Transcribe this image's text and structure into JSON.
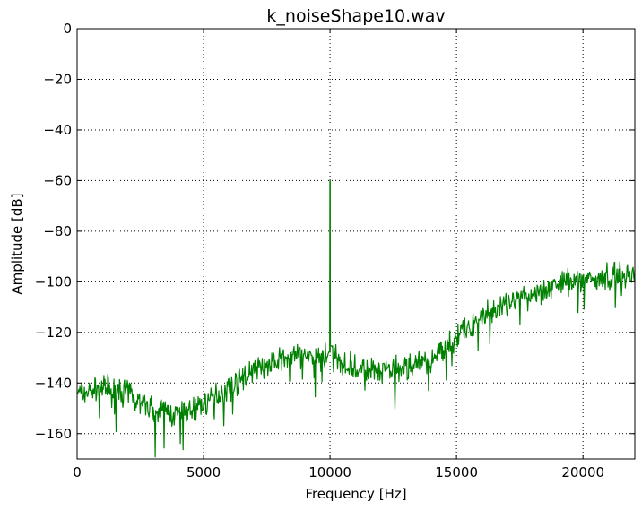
{
  "chart_data": {
    "type": "line",
    "title": "k_noiseShape10.wav",
    "xlabel": "Frequency [Hz]",
    "ylabel": "Amplitude [dB]",
    "xlim": [
      0,
      22050
    ],
    "ylim": [
      -170,
      0
    ],
    "grid": true,
    "x_ticks": [
      0,
      5000,
      10000,
      15000,
      20000
    ],
    "x_tick_labels": [
      "0",
      "5000",
      "10000",
      "15000",
      "20000"
    ],
    "y_ticks": [
      0,
      -20,
      -40,
      -60,
      -80,
      -100,
      -120,
      -140,
      -160
    ],
    "y_tick_labels": [
      "0",
      "−20",
      "−40",
      "−60",
      "−80",
      "−100",
      "−120",
      "−140",
      "−160"
    ],
    "series": [
      {
        "color": "#008000",
        "envelope_x": [
          0,
          1000,
          2000,
          3000,
          4000,
          5000,
          6000,
          7000,
          8000,
          9000,
          9900,
          10100,
          11000,
          12000,
          13000,
          14000,
          15000,
          16000,
          17000,
          18000,
          19000,
          20000,
          21000,
          22050
        ],
        "envelope_y": [
          -144,
          -142,
          -144,
          -150,
          -153,
          -148,
          -142,
          -135,
          -131,
          -129,
          -130,
          -130,
          -134,
          -136,
          -134,
          -131,
          -122,
          -114,
          -109,
          -105,
          -101,
          -99,
          -98,
          -97
        ],
        "noise_amplitude_db": 6,
        "peak": {
          "x": 10000,
          "y": -60
        }
      }
    ]
  }
}
